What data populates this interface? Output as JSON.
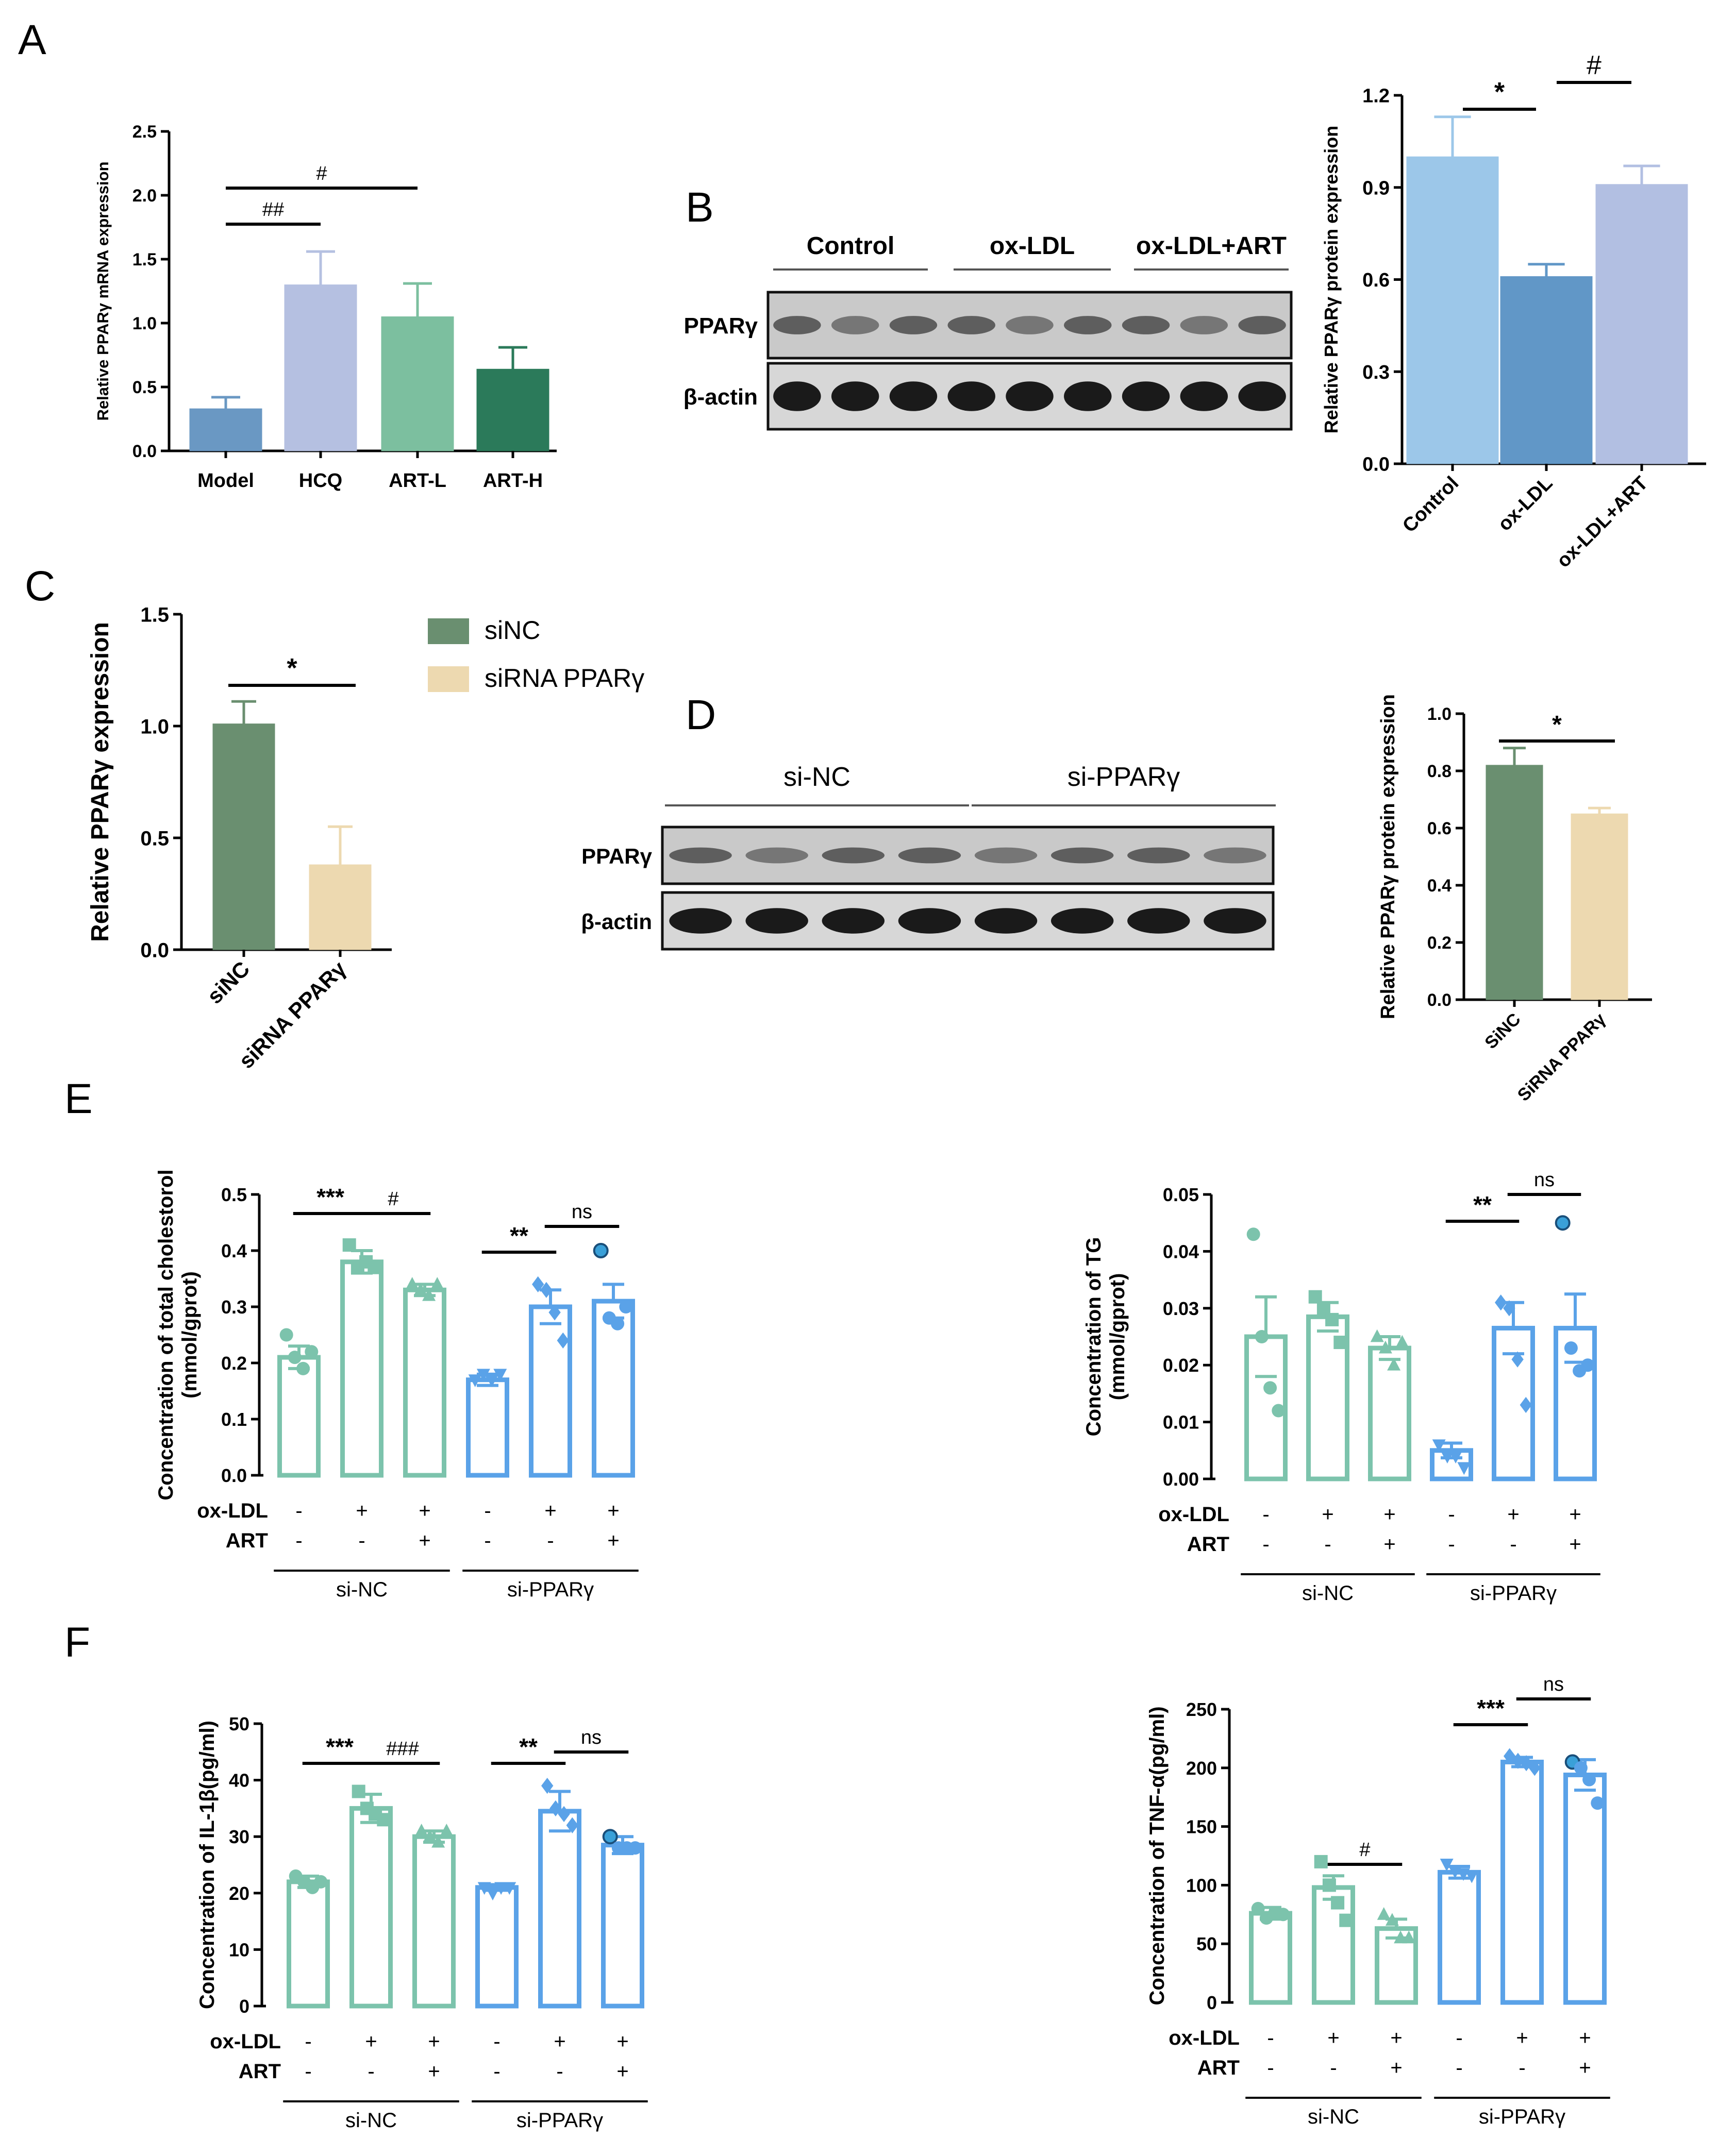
{
  "panel_labels": {
    "A": "A",
    "B": "B",
    "C": "C",
    "D": "D",
    "E": "E",
    "F": "F"
  },
  "colors": {
    "model": "#6a98c3",
    "hcq": "#b5c0e1",
    "art_l": "#7cbf9f",
    "art_h": "#2b7a5a",
    "control": "#9cc7e9",
    "oxldl": "#6197c7",
    "oxldl_art": "#b2bfe2",
    "sinc": "#6a8f70",
    "sirna": "#edd9b0",
    "green_line": "#7cc3ac",
    "blue_line": "#5aa2e8"
  },
  "chart_data": [
    {
      "id": "A",
      "type": "bar",
      "ylabel": "Relative PPARγ mRNA expression",
      "ylim": [
        0,
        2.5
      ],
      "yticks": [
        "0.0",
        "0.5",
        "1.0",
        "1.5",
        "2.0",
        "2.5"
      ],
      "categories": [
        "Model",
        "HCQ",
        "ART-L",
        "ART-H"
      ],
      "values": [
        0.33,
        1.3,
        1.05,
        0.64
      ],
      "errors": [
        0.09,
        0.26,
        0.26,
        0.17
      ],
      "annotations": [
        {
          "text": "##",
          "from": 0,
          "to": 1
        },
        {
          "text": "#",
          "from": 0,
          "to": 2
        }
      ]
    },
    {
      "id": "B_blot",
      "type": "blot",
      "groups": [
        "Control",
        "ox-LDL",
        "ox-LDL+ART"
      ],
      "rows": [
        "PPARγ",
        "β-actin"
      ]
    },
    {
      "id": "B",
      "type": "bar",
      "ylabel": "Relative PPARγ protein expression",
      "ylim": [
        0,
        1.2
      ],
      "yticks": [
        "0.0",
        "0.3",
        "0.6",
        "0.9",
        "1.2"
      ],
      "categories": [
        "Control",
        "ox-LDL",
        "ox-LDL+ART"
      ],
      "values": [
        1.0,
        0.61,
        0.91
      ],
      "errors": [
        0.13,
        0.04,
        0.06
      ],
      "annotations": [
        {
          "text": "*",
          "from": 0,
          "to": 1
        },
        {
          "text": "#",
          "from": 1,
          "to": 2
        }
      ]
    },
    {
      "id": "C",
      "type": "bar",
      "ylabel": "Relative PPARγ expression",
      "ylim": [
        0,
        1.5
      ],
      "yticks": [
        "0.0",
        "0.5",
        "1.0",
        "1.5"
      ],
      "categories": [
        "siNC",
        "siRNA PPARγ"
      ],
      "values": [
        1.01,
        0.38
      ],
      "errors": [
        0.1,
        0.17
      ],
      "legend": [
        "siNC",
        "siRNA PPARγ"
      ],
      "annotations": [
        {
          "text": "*",
          "from": 0,
          "to": 1
        }
      ]
    },
    {
      "id": "D_blot",
      "type": "blot",
      "groups": [
        "si-NC",
        "si-PPARγ"
      ],
      "rows": [
        "PPARγ",
        "β-actin"
      ]
    },
    {
      "id": "D",
      "type": "bar",
      "ylabel": "Relative PPARγ protein expression",
      "ylim": [
        0,
        1.0
      ],
      "yticks": [
        "0.0",
        "0.2",
        "0.4",
        "0.6",
        "0.8",
        "1.0"
      ],
      "categories": [
        "SiNC",
        "SiRNA PPARγ"
      ],
      "values": [
        0.82,
        0.65
      ],
      "errors": [
        0.06,
        0.02
      ],
      "annotations": [
        {
          "text": "*",
          "from": 0,
          "to": 1
        }
      ]
    },
    {
      "id": "E1",
      "type": "bar",
      "ylabel": "Concentration of total cholestorol",
      "ylabel2": "(mmol/gprot)",
      "ylim": [
        0,
        0.5
      ],
      "yticks": [
        "0.0",
        "0.1",
        "0.2",
        "0.3",
        "0.4",
        "0.5"
      ],
      "values": [
        0.21,
        0.38,
        0.33,
        0.17,
        0.3,
        0.31
      ],
      "errors": [
        0.02,
        0.02,
        0.01,
        0.01,
        0.03,
        0.03
      ],
      "points": [
        [
          0.25,
          0.21,
          0.19,
          0.22
        ],
        [
          0.41,
          0.37,
          0.38,
          0.37
        ],
        [
          0.34,
          0.33,
          0.32,
          0.34
        ],
        [
          0.17,
          0.18,
          0.17,
          0.18
        ],
        [
          0.34,
          0.33,
          0.29,
          0.24
        ],
        [
          0.4,
          0.28,
          0.27,
          0.3
        ]
      ],
      "markers": [
        "circle",
        "square",
        "triangle",
        "tri-down",
        "diamond",
        "circle"
      ],
      "condition_rows": [
        {
          "label": "ox-LDL",
          "vals": [
            "-",
            "+",
            "+",
            "-",
            "+",
            "+"
          ]
        },
        {
          "label": "ART",
          "vals": [
            "-",
            "-",
            "+",
            "-",
            "-",
            "+"
          ]
        }
      ],
      "groups": [
        "si-NC",
        "si-PPARγ"
      ],
      "annotations": [
        {
          "text": "***",
          "from": 0,
          "to": 1,
          "bold": true
        },
        {
          "text": "#",
          "from": 1,
          "to": 2
        },
        {
          "text": "**",
          "from": 3,
          "to": 4,
          "bold": true
        },
        {
          "text": "ns",
          "from": 4,
          "to": 5
        }
      ]
    },
    {
      "id": "E2",
      "type": "bar",
      "ylabel": "Concentration of TG",
      "ylabel2": "(mmol/gprot)",
      "ylim": [
        0,
        0.05
      ],
      "yticks": [
        "0.00",
        "0.01",
        "0.02",
        "0.03",
        "0.04",
        "0.05"
      ],
      "values": [
        0.025,
        0.0285,
        0.023,
        0.005,
        0.0265,
        0.0265
      ],
      "errors": [
        0.007,
        0.0025,
        0.002,
        0.0013,
        0.0045,
        0.006
      ],
      "points": [
        [
          0.043,
          0.025,
          0.016,
          0.012
        ],
        [
          0.032,
          0.03,
          0.028,
          0.024
        ],
        [
          0.025,
          0.023,
          0.02,
          0.024
        ],
        [
          0.006,
          0.004,
          0.004,
          0.002
        ],
        [
          0.031,
          0.03,
          0.021,
          0.013
        ],
        [
          0.045,
          0.023,
          0.019,
          0.02
        ]
      ],
      "markers": [
        "circle",
        "square",
        "triangle",
        "tri-down",
        "diamond",
        "circle"
      ],
      "condition_rows": [
        {
          "label": "ox-LDL",
          "vals": [
            "-",
            "+",
            "+",
            "-",
            "+",
            "+"
          ]
        },
        {
          "label": "ART",
          "vals": [
            "-",
            "-",
            "+",
            "-",
            "-",
            "+"
          ]
        }
      ],
      "groups": [
        "si-NC",
        "si-PPARγ"
      ],
      "annotations": [
        {
          "text": "**",
          "from": 3,
          "to": 4,
          "bold": true
        },
        {
          "text": "ns",
          "from": 4,
          "to": 5
        }
      ]
    },
    {
      "id": "F1",
      "type": "bar",
      "ylabel": "Concentration of IL-1β(pg/ml)",
      "ylim": [
        0,
        50
      ],
      "yticks": [
        "0",
        "10",
        "20",
        "30",
        "40",
        "50"
      ],
      "values": [
        22,
        35,
        30,
        21,
        34.5,
        28.5
      ],
      "errors": [
        1,
        2.5,
        1,
        0.5,
        3.5,
        1.5
      ],
      "points": [
        [
          23,
          22,
          21,
          22
        ],
        [
          38,
          35,
          34,
          33
        ],
        [
          31,
          30,
          29,
          31
        ],
        [
          21,
          20,
          21,
          21
        ],
        [
          39,
          35,
          34,
          32
        ],
        [
          30,
          28,
          28,
          28
        ]
      ],
      "markers": [
        "circle",
        "square",
        "triangle",
        "tri-down",
        "diamond",
        "circle"
      ],
      "condition_rows": [
        {
          "label": "ox-LDL",
          "vals": [
            "-",
            "+",
            "+",
            "-",
            "+",
            "+"
          ]
        },
        {
          "label": "ART",
          "vals": [
            "-",
            "-",
            "+",
            "-",
            "-",
            "+"
          ]
        }
      ],
      "groups": [
        "si-NC",
        "si-PPARγ"
      ],
      "annotations": [
        {
          "text": "***",
          "from": 0,
          "to": 1,
          "bold": true
        },
        {
          "text": "###",
          "from": 1,
          "to": 2
        },
        {
          "text": "**",
          "from": 3,
          "to": 4,
          "bold": true
        },
        {
          "text": "ns",
          "from": 4,
          "to": 5
        }
      ]
    },
    {
      "id": "F2",
      "type": "bar",
      "ylabel": "Concentration of TNF-α(pg/ml)",
      "ylim": [
        0,
        250
      ],
      "yticks": [
        "0",
        "50",
        "100",
        "150",
        "200",
        "250"
      ],
      "values": [
        76,
        98,
        63,
        111,
        205,
        194
      ],
      "errors": [
        5,
        10,
        8,
        5,
        4,
        13
      ],
      "points": [
        [
          80,
          72,
          76,
          75
        ],
        [
          120,
          100,
          85,
          70
        ],
        [
          75,
          70,
          55,
          55
        ],
        [
          118,
          112,
          110,
          108
        ],
        [
          210,
          206,
          204,
          200
        ],
        [
          205,
          200,
          190,
          170
        ]
      ],
      "markers": [
        "circle",
        "square",
        "triangle",
        "tri-down",
        "diamond",
        "circle"
      ],
      "condition_rows": [
        {
          "label": "ox-LDL",
          "vals": [
            "-",
            "+",
            "+",
            "-",
            "+",
            "+"
          ]
        },
        {
          "label": "ART",
          "vals": [
            "-",
            "-",
            "+",
            "-",
            "-",
            "+"
          ]
        }
      ],
      "groups": [
        "si-NC",
        "si-PPARγ"
      ],
      "annotations": [
        {
          "text": "#",
          "from": 1,
          "to": 2
        },
        {
          "text": "***",
          "from": 3,
          "to": 4,
          "bold": true
        },
        {
          "text": "ns",
          "from": 4,
          "to": 5
        }
      ]
    }
  ]
}
